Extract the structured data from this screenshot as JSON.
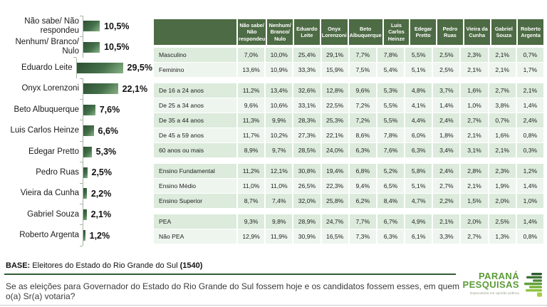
{
  "colors": {
    "header_green": "#4d6b44",
    "row_shade_dark": "#dcebdc",
    "row_shade_light": "#eef5ee",
    "bar_green_dark": "#2d4f33",
    "bar_green_light": "#8ab287",
    "logo_green": "#5b9b38",
    "separator_green": "#335b34"
  },
  "chart_data": [
    {
      "type": "bar",
      "orientation": "horizontal",
      "categories": [
        "Não sabe/ Não respondeu",
        "Nenhum/ Branco/ Nulo",
        "Eduardo Leite",
        "Onyx Lorenzoni",
        "Beto Albuquerque",
        "Luis Carlos Heinze",
        "Edegar Pretto",
        "Pedro Ruas",
        "Vieira da Cunha",
        "Gabriel Souza",
        "Roberto Argenta"
      ],
      "values": [
        10.5,
        10.5,
        29.5,
        22.1,
        7.6,
        6.6,
        5.3,
        2.5,
        2.2,
        2.1,
        1.2
      ],
      "value_labels": [
        "10,5%",
        "10,5%",
        "29,5%",
        "22,1%",
        "7,6%",
        "6,6%",
        "5,3%",
        "2,5%",
        "2,2%",
        "2,1%",
        "1,2%"
      ],
      "title": "",
      "xlabel": "",
      "ylabel": "",
      "xlim": [
        0,
        32
      ],
      "grid": false,
      "legend": false
    },
    {
      "type": "table",
      "columns": [
        "Não sabe/ Não respondeu",
        "Nenhum/ Branco/ Nulo",
        "Eduardo Leite",
        "Onyx Lorenzoni",
        "Beto Albuquerque",
        "Luis Carlos Heinze",
        "Edegar Pretto",
        "Pedro Ruas",
        "Vieira da Cunha",
        "Gabriel Souza",
        "Roberto Argenta"
      ],
      "groups": [
        {
          "rows": [
            {
              "label": "Masculino",
              "values": [
                "7,0%",
                "10,0%",
                "25,4%",
                "29,1%",
                "7,7%",
                "7,8%",
                "5,5%",
                "2,5%",
                "2,3%",
                "2,1%",
                "0,7%"
              ]
            },
            {
              "label": "Feminino",
              "values": [
                "13,6%",
                "10,9%",
                "33,3%",
                "15,9%",
                "7,5%",
                "5,4%",
                "5,1%",
                "2,5%",
                "2,1%",
                "2,1%",
                "1,7%"
              ]
            }
          ]
        },
        {
          "rows": [
            {
              "label": "De 16 a 24 anos",
              "values": [
                "11,2%",
                "13,4%",
                "32,6%",
                "12,8%",
                "9,6%",
                "5,3%",
                "4,8%",
                "3,7%",
                "1,6%",
                "2,7%",
                "2,1%"
              ]
            },
            {
              "label": "De 25 a 34 anos",
              "values": [
                "9,6%",
                "10,6%",
                "33,1%",
                "22,5%",
                "7,2%",
                "5,5%",
                "4,1%",
                "1,4%",
                "1,0%",
                "3,8%",
                "1,4%"
              ]
            },
            {
              "label": "De 35 a 44 anos",
              "values": [
                "11,3%",
                "9,9%",
                "28,3%",
                "25,3%",
                "7,2%",
                "5,5%",
                "4,4%",
                "2,4%",
                "2,7%",
                "0,7%",
                "2,4%"
              ]
            },
            {
              "label": "De 45 a 59 anos",
              "values": [
                "11,7%",
                "10,2%",
                "27,3%",
                "22,1%",
                "8,6%",
                "7,8%",
                "6,0%",
                "1,8%",
                "2,1%",
                "1,6%",
                "0,8%"
              ]
            },
            {
              "label": "60 anos ou mais",
              "values": [
                "8,9%",
                "9,7%",
                "28,5%",
                "24,0%",
                "6,3%",
                "7,6%",
                "6,3%",
                "3,4%",
                "3,1%",
                "2,1%",
                "0,3%"
              ]
            }
          ]
        },
        {
          "rows": [
            {
              "label": "Ensino Fundamental",
              "values": [
                "11,2%",
                "12,1%",
                "30,8%",
                "19,4%",
                "6,8%",
                "5,2%",
                "5,8%",
                "2,4%",
                "2,8%",
                "2,3%",
                "1,2%"
              ]
            },
            {
              "label": "Ensino Médio",
              "values": [
                "11,0%",
                "11,0%",
                "26,5%",
                "22,3%",
                "9,4%",
                "6,5%",
                "5,1%",
                "2,7%",
                "2,1%",
                "1,9%",
                "1,4%"
              ]
            },
            {
              "label": "Ensino Superior",
              "values": [
                "8,7%",
                "7,4%",
                "32,0%",
                "25,8%",
                "6,2%",
                "8,4%",
                "4,7%",
                "2,2%",
                "1,5%",
                "2,0%",
                "1,0%"
              ]
            }
          ]
        },
        {
          "rows": [
            {
              "label": "PEA",
              "values": [
                "9,3%",
                "9,8%",
                "28,9%",
                "24,7%",
                "7,7%",
                "6,7%",
                "4,9%",
                "2,1%",
                "2,0%",
                "2,5%",
                "1,4%"
              ]
            },
            {
              "label": "Não PEA",
              "values": [
                "12,9%",
                "11,9%",
                "30,9%",
                "16,5%",
                "7,3%",
                "6,3%",
                "6,1%",
                "3,3%",
                "2,7%",
                "1,3%",
                "0,8%"
              ]
            }
          ]
        }
      ]
    }
  ],
  "footer": {
    "base_label": "BASE:",
    "base_text": " Eleitores do Estado do Rio Grande do Sul ",
    "base_count": "(1540)",
    "question": "Se as eleições para Governador do Estado do Rio Grande do Sul fossem hoje e os candidatos fossem esses, em quem o(a) Sr(a) votaria?"
  },
  "logo": {
    "line1": "PARANÁ",
    "line2": "PESQUISAS",
    "tagline": "Especialista em opinião pública"
  }
}
